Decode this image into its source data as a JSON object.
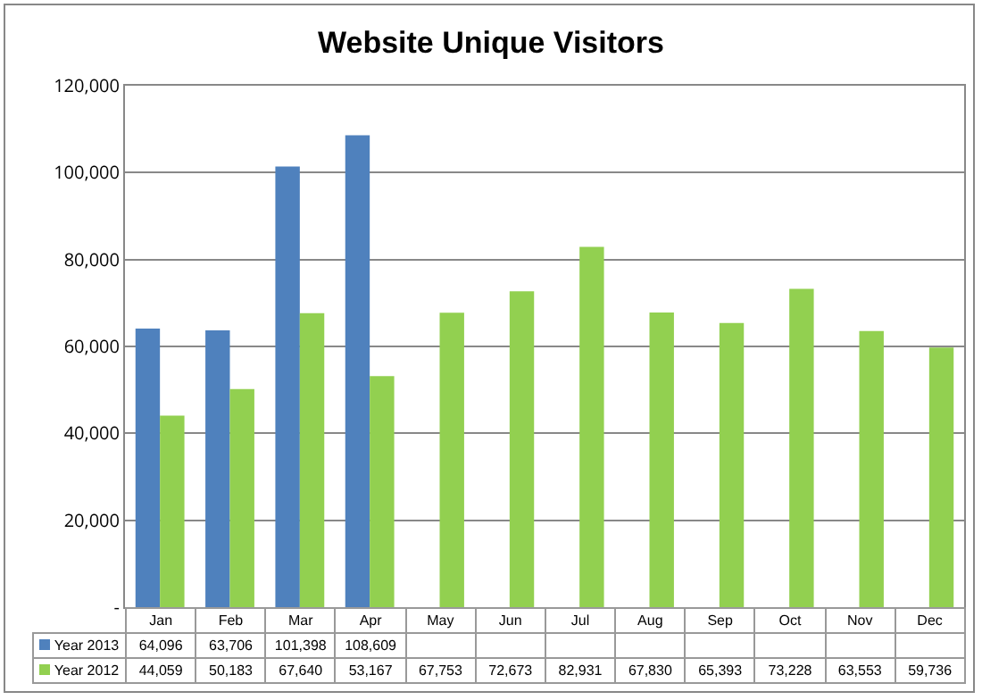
{
  "chart_data": {
    "type": "bar",
    "title": "Website Unique Visitors",
    "categories": [
      "Jan",
      "Feb",
      "Mar",
      "Apr",
      "May",
      "Jun",
      "Jul",
      "Aug",
      "Sep",
      "Oct",
      "Nov",
      "Dec"
    ],
    "series": [
      {
        "name": "Year 2013",
        "color": "#4f81bd",
        "values": [
          64096,
          63706,
          101398,
          108609,
          null,
          null,
          null,
          null,
          null,
          null,
          null,
          null
        ],
        "value_labels": [
          "64,096",
          "63,706",
          "101,398",
          "108,609",
          null,
          null,
          null,
          null,
          null,
          null,
          null,
          null
        ]
      },
      {
        "name": "Year 2012",
        "color": "#92d050",
        "values": [
          44059,
          50183,
          67640,
          53167,
          67753,
          72673,
          82931,
          67830,
          65393,
          73228,
          63553,
          59736
        ],
        "value_labels": [
          "44,059",
          "50,183",
          "67,640",
          "53,167",
          "67,753",
          "72,673",
          "82,931",
          "67,830",
          "65,393",
          "73,228",
          "63,553",
          "59,736"
        ]
      }
    ],
    "ylim": [
      0,
      120000
    ],
    "yticks": [
      {
        "value": 0,
        "label": "-"
      },
      {
        "value": 20000,
        "label": "20,000"
      },
      {
        "value": 40000,
        "label": "40,000"
      },
      {
        "value": 60000,
        "label": "60,000"
      },
      {
        "value": 80000,
        "label": "80,000"
      },
      {
        "value": 100000,
        "label": "100,000"
      },
      {
        "value": 120000,
        "label": "120,000"
      }
    ],
    "grid": "y",
    "legend": "bottom left"
  }
}
